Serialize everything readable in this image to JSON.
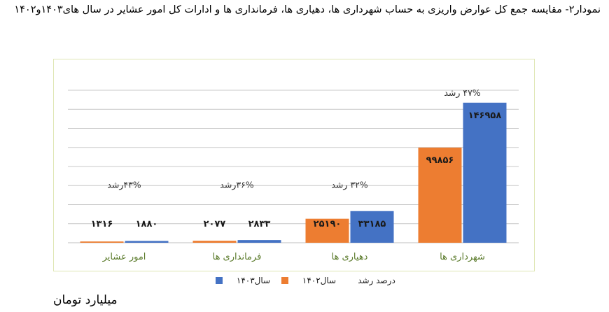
{
  "title": "نمودار۲- مقایسه جمع کل عوارض واریزی به حساب شهرداری ها، دهیاری ها، فرمانداری ها و ادارات کل امور عشایر در سال های۱۴۰۳و۱۴۰۲",
  "unit": "میلیارد تومان",
  "chart_data": {
    "type": "bar",
    "categories": [
      "شهرداری ها",
      "دهیاری ها",
      "فرمانداری ها",
      "امور عشایر"
    ],
    "series": [
      {
        "name": "سال۱۴۰۲",
        "values": [
          99856,
          25190,
          2077,
          1316
        ],
        "labels": [
          "۹۹۸۵۶",
          "۲۵۱۹۰",
          "۲۰۷۷",
          "۱۳۱۶"
        ],
        "color": "#ed7d31"
      },
      {
        "name": "سال۱۴۰۳",
        "values": [
          146958,
          33185,
          2833,
          1880
        ],
        "labels": [
          "۱۴۶۹۵۸",
          "۳۳۱۸۵",
          "۲۸۳۳",
          "۱۸۸۰"
        ],
        "color": "#4472c4"
      }
    ],
    "growth_labels": [
      "۴۷% رشد",
      "۳۲% رشد",
      "۳۶%رشد",
      "۴۳%رشد"
    ],
    "growth_values": [
      47,
      32,
      36,
      43
    ],
    "legend": [
      "درصد رشد",
      "سال۱۴۰۲",
      "سال۱۴۰۳"
    ],
    "legend_position": "bottom",
    "grid": true,
    "ylim": [
      0,
      160000
    ],
    "category_label_color": "#5a7a2a"
  }
}
